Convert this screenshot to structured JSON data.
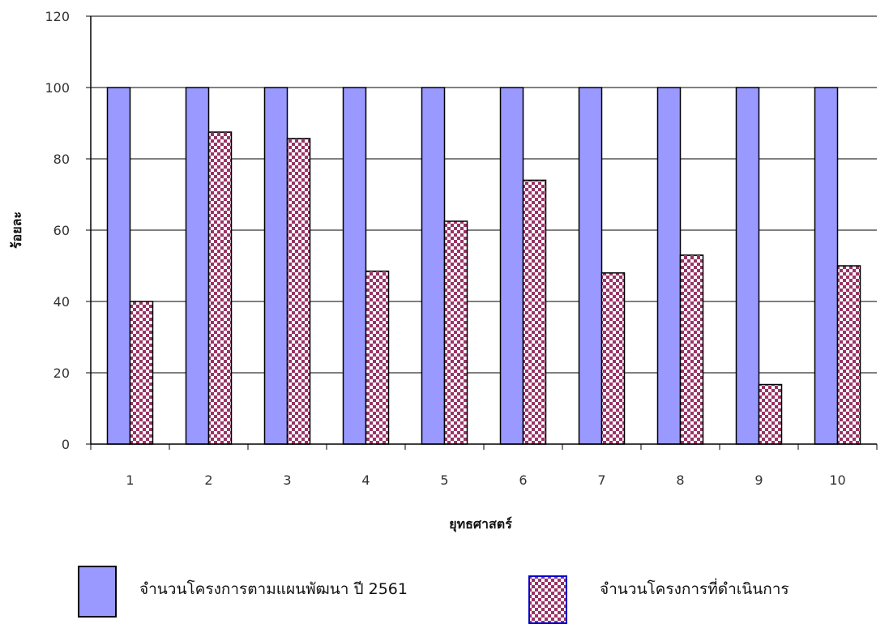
{
  "chart_data": {
    "type": "bar",
    "categories": [
      "1",
      "2",
      "3",
      "4",
      "5",
      "6",
      "7",
      "8",
      "9",
      "10"
    ],
    "series": [
      {
        "name": "จำนวนโครงการตามแผนพัฒนา ปี 2561",
        "values": [
          100,
          100,
          100,
          100,
          100,
          100,
          100,
          100,
          100,
          100
        ],
        "color": "#9999ff",
        "pattern": "solid"
      },
      {
        "name": "จำนวนโครงการที่ดำเนินการ",
        "values": [
          40,
          87.5,
          85.7,
          48.5,
          62.5,
          74,
          48,
          53,
          16.7,
          50
        ],
        "color": "#993366",
        "pattern": "checkerboard"
      }
    ],
    "xlabel": "ยุทธศาสตร์",
    "ylabel": "ร้อยละ",
    "ylim": [
      0,
      120
    ],
    "yticks": [
      0,
      20,
      40,
      60,
      80,
      100,
      120
    ],
    "grid": "horizontal",
    "legend_position": "bottom"
  }
}
